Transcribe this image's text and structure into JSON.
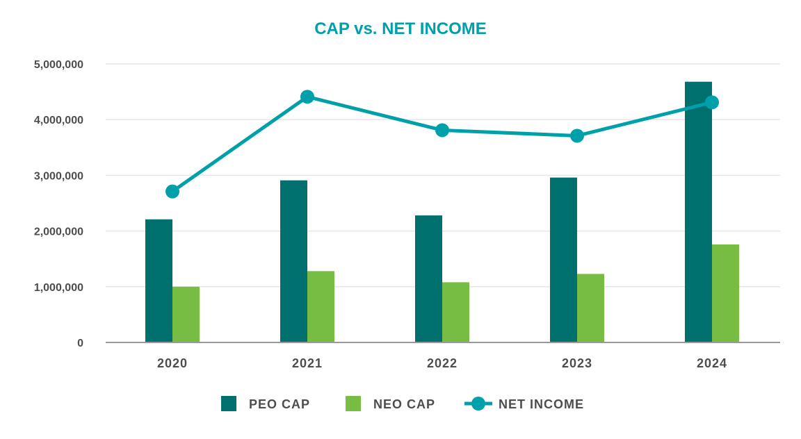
{
  "chart_data": {
    "type": "bar",
    "title": "CAP vs. NET INCOME",
    "categories": [
      "2020",
      "2021",
      "2022",
      "2023",
      "2024"
    ],
    "ylim": [
      0,
      5000000
    ],
    "yticks": [
      0,
      1000000,
      2000000,
      3000000,
      4000000,
      5000000
    ],
    "ytick_labels": [
      "0",
      "1,000,000",
      "2,000,000",
      "3,000,000",
      "4,000,000",
      "5,000,000"
    ],
    "grid": true,
    "legend_position": "bottom-center",
    "series": [
      {
        "name": "PEO CAP",
        "kind": "bar",
        "color": "#00706e",
        "values": [
          2210000,
          2910000,
          2280000,
          2960000,
          4680000
        ]
      },
      {
        "name": "NEO CAP",
        "kind": "bar",
        "color": "#78bd43",
        "values": [
          1000000,
          1280000,
          1080000,
          1230000,
          1760000
        ]
      },
      {
        "name": "NET INCOME",
        "kind": "line",
        "color": "#00a0ab",
        "values": [
          2710000,
          4410000,
          3810000,
          3710000,
          4310000
        ]
      }
    ],
    "colors": {
      "title": "#00a0ab",
      "axis": "#999999",
      "grid": "#e6e6e6",
      "text": "#4d4d4d"
    }
  }
}
